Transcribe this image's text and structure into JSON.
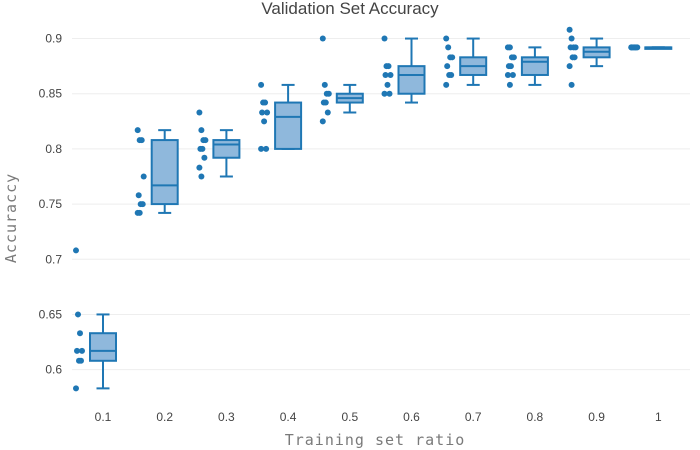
{
  "chart_data": {
    "type": "box",
    "title": "Validation Set Accuracy",
    "xlabel": "Training set ratio",
    "ylabel": "Accuraccy",
    "categories": [
      "0.1",
      "0.2",
      "0.3",
      "0.4",
      "0.5",
      "0.6",
      "0.7",
      "0.8",
      "0.9",
      "1"
    ],
    "y_ticks": [
      "0.6",
      "0.65",
      "0.7",
      "0.75",
      "0.8",
      "0.85",
      "0.9"
    ],
    "ylim": [
      0.577,
      0.915
    ],
    "grid": true,
    "boxpoints": "all",
    "color": "#1f77b4",
    "fill_color": "#8fb8dc",
    "boxes": [
      {
        "category": "0.1",
        "min": 0.583,
        "q1": 0.608,
        "median": 0.617,
        "q3": 0.633,
        "max": 0.65,
        "points": [
          0.708,
          0.65,
          0.633,
          0.617,
          0.617,
          0.608,
          0.608,
          0.583
        ]
      },
      {
        "category": "0.2",
        "min": 0.742,
        "q1": 0.75,
        "median": 0.767,
        "q3": 0.808,
        "max": 0.817,
        "points": [
          0.817,
          0.808,
          0.808,
          0.775,
          0.758,
          0.75,
          0.75,
          0.742,
          0.742
        ]
      },
      {
        "category": "0.3",
        "min": 0.775,
        "q1": 0.792,
        "median": 0.804,
        "q3": 0.808,
        "max": 0.817,
        "points": [
          0.833,
          0.817,
          0.808,
          0.808,
          0.8,
          0.8,
          0.792,
          0.783,
          0.775
        ]
      },
      {
        "category": "0.4",
        "min": 0.8,
        "q1": 0.8,
        "median": 0.829,
        "q3": 0.842,
        "max": 0.858,
        "points": [
          0.858,
          0.842,
          0.842,
          0.833,
          0.833,
          0.825,
          0.8,
          0.8
        ]
      },
      {
        "category": "0.5",
        "min": 0.833,
        "q1": 0.842,
        "median": 0.846,
        "q3": 0.85,
        "max": 0.858,
        "points": [
          0.9,
          0.858,
          0.85,
          0.85,
          0.842,
          0.842,
          0.833,
          0.825
        ]
      },
      {
        "category": "0.6",
        "min": 0.842,
        "q1": 0.85,
        "median": 0.867,
        "q3": 0.875,
        "max": 0.9,
        "points": [
          0.9,
          0.875,
          0.875,
          0.867,
          0.867,
          0.858,
          0.85,
          0.85
        ]
      },
      {
        "category": "0.7",
        "min": 0.858,
        "q1": 0.867,
        "median": 0.875,
        "q3": 0.883,
        "max": 0.9,
        "points": [
          0.9,
          0.892,
          0.883,
          0.883,
          0.875,
          0.867,
          0.867,
          0.858
        ]
      },
      {
        "category": "0.8",
        "min": 0.858,
        "q1": 0.867,
        "median": 0.879,
        "q3": 0.883,
        "max": 0.892,
        "points": [
          0.892,
          0.892,
          0.883,
          0.883,
          0.875,
          0.875,
          0.867,
          0.867,
          0.858
        ]
      },
      {
        "category": "0.9",
        "min": 0.875,
        "q1": 0.883,
        "median": 0.888,
        "q3": 0.892,
        "max": 0.9,
        "points": [
          0.908,
          0.9,
          0.892,
          0.892,
          0.892,
          0.883,
          0.883,
          0.875,
          0.858
        ]
      },
      {
        "category": "1",
        "min": 0.892,
        "q1": 0.892,
        "median": 0.892,
        "q3": 0.892,
        "max": 0.892,
        "points": [
          0.892,
          0.892,
          0.892,
          0.892,
          0.892,
          0.892,
          0.892,
          0.892
        ]
      }
    ]
  }
}
